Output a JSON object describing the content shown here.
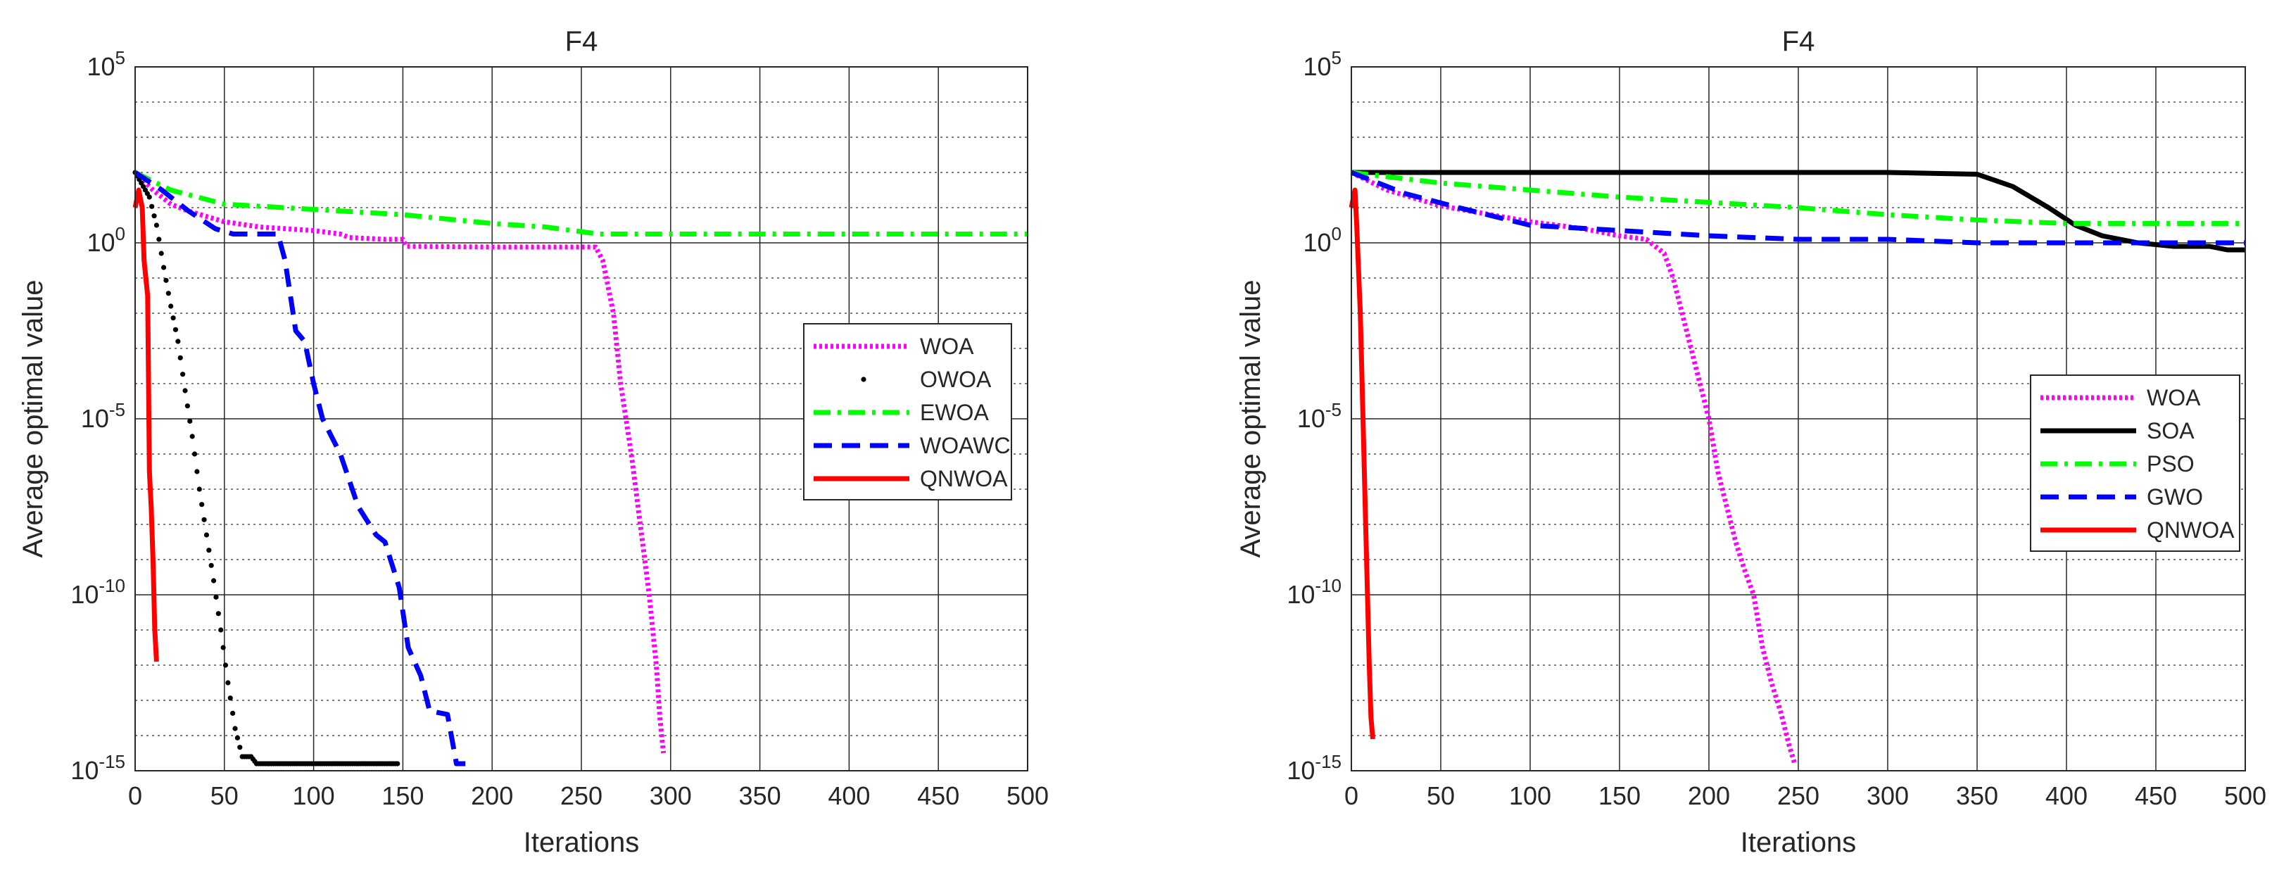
{
  "chart_data": [
    {
      "type": "line",
      "title": "F4",
      "xlabel": "Iterations",
      "ylabel": "Average optimal value",
      "xlim": [
        0,
        500
      ],
      "ylim_exp": [
        -15,
        5
      ],
      "yscale": "log",
      "grid": true,
      "legend_position": "center-right",
      "x_ticks": [
        "0",
        "50",
        "100",
        "150",
        "200",
        "250",
        "300",
        "350",
        "400",
        "450",
        "500"
      ],
      "y_ticks": [
        {
          "base": "10",
          "exp": "-15"
        },
        {
          "base": "10",
          "exp": "-10"
        },
        {
          "base": "10",
          "exp": "-5"
        },
        {
          "base": "10",
          "exp": "0"
        },
        {
          "base": "10",
          "exp": "5"
        }
      ],
      "series": [
        {
          "name": "WOA",
          "color": "#ff00ff",
          "style": "dotted",
          "points": [
            [
              0,
              2.0
            ],
            [
              10,
              1.5
            ],
            [
              20,
              1.1
            ],
            [
              30,
              0.9
            ],
            [
              40,
              0.75
            ],
            [
              50,
              0.6
            ],
            [
              70,
              0.45
            ],
            [
              100,
              0.35
            ],
            [
              115,
              0.25
            ],
            [
              120,
              0.15
            ],
            [
              140,
              0.1
            ],
            [
              150,
              0.1
            ],
            [
              152,
              -0.1
            ],
            [
              200,
              -0.12
            ],
            [
              258,
              -0.12
            ],
            [
              262,
              -0.5
            ],
            [
              268,
              -2
            ],
            [
              272,
              -4
            ],
            [
              278,
              -6
            ],
            [
              283,
              -8
            ],
            [
              288,
              -10
            ],
            [
              292,
              -12
            ],
            [
              294,
              -13.5
            ],
            [
              296,
              -14.5
            ]
          ]
        },
        {
          "name": "OWOA",
          "color": "#000000",
          "style": "dots",
          "points": [
            [
              0,
              2.0
            ],
            [
              8,
              1.3
            ],
            [
              12,
              0.5
            ],
            [
              16,
              -0.7
            ],
            [
              20,
              -1.8
            ],
            [
              24,
              -2.8
            ],
            [
              28,
              -4.2
            ],
            [
              32,
              -5.5
            ],
            [
              36,
              -7
            ],
            [
              40,
              -8.3
            ],
            [
              44,
              -9.6
            ],
            [
              48,
              -11
            ],
            [
              52,
              -12.5
            ],
            [
              56,
              -13.8
            ],
            [
              60,
              -14.6
            ],
            [
              65,
              -14.6
            ],
            [
              68,
              -14.8
            ],
            [
              100,
              -14.8
            ],
            [
              147,
              -14.8
            ]
          ]
        },
        {
          "name": "EWOA",
          "color": "#00ff00",
          "style": "dashdot",
          "points": [
            [
              0,
              2.0
            ],
            [
              20,
              1.5
            ],
            [
              50,
              1.1
            ],
            [
              100,
              0.95
            ],
            [
              150,
              0.8
            ],
            [
              200,
              0.55
            ],
            [
              230,
              0.45
            ],
            [
              260,
              0.25
            ],
            [
              300,
              0.25
            ],
            [
              400,
              0.25
            ],
            [
              500,
              0.25
            ]
          ]
        },
        {
          "name": "WOAWC",
          "color": "#0000ff",
          "style": "dashed",
          "points": [
            [
              0,
              2.0
            ],
            [
              15,
              1.5
            ],
            [
              30,
              0.9
            ],
            [
              45,
              0.4
            ],
            [
              55,
              0.25
            ],
            [
              80,
              0.25
            ],
            [
              84,
              -0.5
            ],
            [
              90,
              -2.5
            ],
            [
              95,
              -2.8
            ],
            [
              100,
              -4
            ],
            [
              105,
              -5
            ],
            [
              115,
              -6
            ],
            [
              125,
              -7.5
            ],
            [
              135,
              -8.3
            ],
            [
              140,
              -8.5
            ],
            [
              148,
              -9.8
            ],
            [
              153,
              -11.5
            ],
            [
              160,
              -12.3
            ],
            [
              165,
              -13.3
            ],
            [
              175,
              -13.4
            ],
            [
              180,
              -14.8
            ],
            [
              185,
              -14.8
            ]
          ]
        },
        {
          "name": "QNWOA",
          "color": "#ff0000",
          "style": "solid",
          "points": [
            [
              0,
              1.0
            ],
            [
              2,
              1.5
            ],
            [
              4,
              1.0
            ],
            [
              5,
              -0.5
            ],
            [
              6,
              -1.0
            ],
            [
              7,
              -1.5
            ],
            [
              8,
              -6.5
            ],
            [
              9,
              -7.5
            ],
            [
              10,
              -9.0
            ],
            [
              11,
              -11.0
            ],
            [
              12,
              -11.9
            ]
          ]
        }
      ]
    },
    {
      "type": "line",
      "title": "F4",
      "xlabel": "Iterations",
      "ylabel": "Average optimal value",
      "xlim": [
        0,
        500
      ],
      "ylim_exp": [
        -15,
        5
      ],
      "yscale": "log",
      "grid": true,
      "legend_position": "center-right",
      "x_ticks": [
        "0",
        "50",
        "100",
        "150",
        "200",
        "250",
        "300",
        "350",
        "400",
        "450",
        "500"
      ],
      "y_ticks": [
        {
          "base": "10",
          "exp": "-15"
        },
        {
          "base": "10",
          "exp": "-10"
        },
        {
          "base": "10",
          "exp": "-5"
        },
        {
          "base": "10",
          "exp": "0"
        },
        {
          "base": "10",
          "exp": "5"
        }
      ],
      "series": [
        {
          "name": "WOA",
          "color": "#ff00ff",
          "style": "dotted",
          "points": [
            [
              0,
              2.0
            ],
            [
              20,
              1.5
            ],
            [
              50,
              1.05
            ],
            [
              100,
              0.6
            ],
            [
              130,
              0.4
            ],
            [
              150,
              0.2
            ],
            [
              165,
              0.1
            ],
            [
              175,
              -0.3
            ],
            [
              180,
              -1.0
            ],
            [
              185,
              -2.0
            ],
            [
              190,
              -3.0
            ],
            [
              195,
              -4.0
            ],
            [
              200,
              -5.0
            ],
            [
              205,
              -6.5
            ],
            [
              210,
              -7.5
            ],
            [
              215,
              -8.5
            ],
            [
              220,
              -9.3
            ],
            [
              225,
              -10.0
            ],
            [
              230,
              -11.5
            ],
            [
              235,
              -12.5
            ],
            [
              240,
              -13.3
            ],
            [
              245,
              -14.3
            ],
            [
              248,
              -14.8
            ]
          ]
        },
        {
          "name": "SOA",
          "color": "#000000",
          "style": "solid",
          "points": [
            [
              0,
              2.0
            ],
            [
              50,
              2.0
            ],
            [
              100,
              2.0
            ],
            [
              200,
              2.0
            ],
            [
              300,
              2.0
            ],
            [
              350,
              1.95
            ],
            [
              370,
              1.6
            ],
            [
              390,
              1.0
            ],
            [
              405,
              0.5
            ],
            [
              420,
              0.2
            ],
            [
              440,
              0.0
            ],
            [
              460,
              -0.1
            ],
            [
              480,
              -0.1
            ],
            [
              490,
              -0.2
            ],
            [
              500,
              -0.2
            ]
          ]
        },
        {
          "name": "PSO",
          "color": "#00ff00",
          "style": "dashdot",
          "points": [
            [
              0,
              2.0
            ],
            [
              50,
              1.7
            ],
            [
              100,
              1.5
            ],
            [
              150,
              1.3
            ],
            [
              200,
              1.15
            ],
            [
              250,
              1.0
            ],
            [
              300,
              0.8
            ],
            [
              350,
              0.65
            ],
            [
              400,
              0.55
            ],
            [
              450,
              0.55
            ],
            [
              500,
              0.55
            ]
          ]
        },
        {
          "name": "GWO",
          "color": "#0000ff",
          "style": "dashed",
          "points": [
            [
              0,
              2.0
            ],
            [
              30,
              1.4
            ],
            [
              60,
              1.0
            ],
            [
              100,
              0.5
            ],
            [
              150,
              0.35
            ],
            [
              200,
              0.2
            ],
            [
              250,
              0.1
            ],
            [
              300,
              0.1
            ],
            [
              350,
              0.0
            ],
            [
              400,
              0.0
            ],
            [
              450,
              0.0
            ],
            [
              500,
              0.0
            ]
          ]
        },
        {
          "name": "QNWOA",
          "color": "#ff0000",
          "style": "solid",
          "points": [
            [
              0,
              1.0
            ],
            [
              2,
              1.5
            ],
            [
              3,
              0.5
            ],
            [
              5,
              -2.0
            ],
            [
              7,
              -6.0
            ],
            [
              8,
              -8.0
            ],
            [
              9,
              -10.0
            ],
            [
              10,
              -12.0
            ],
            [
              11,
              -13.5
            ],
            [
              12,
              -14.1
            ]
          ]
        }
      ]
    }
  ]
}
